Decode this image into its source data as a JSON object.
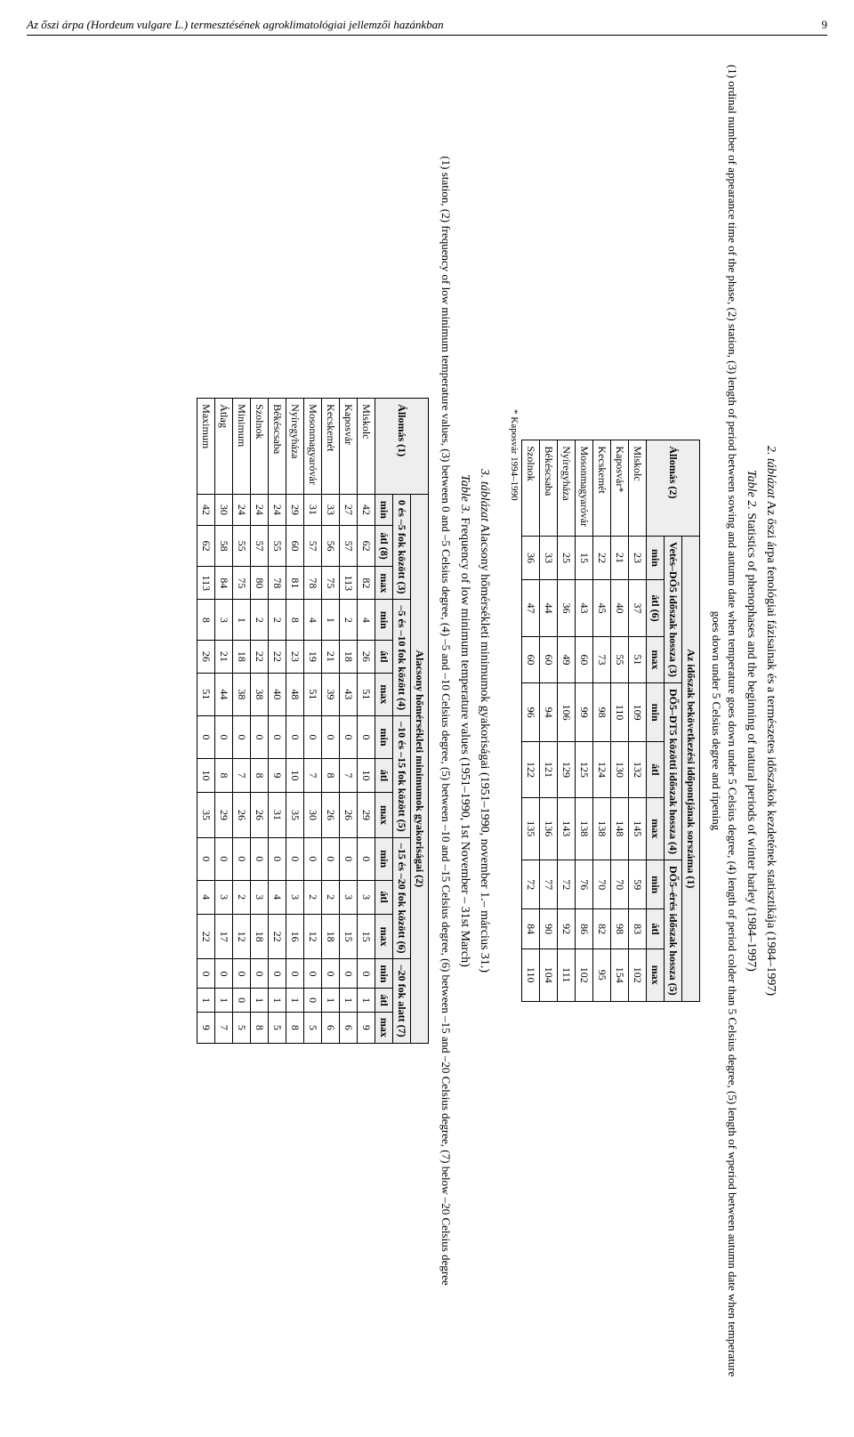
{
  "header": {
    "title": "Az őszi árpa (Hordeum vulgare L.) termesztésének agroklimatológiai jellemzői hazánkban",
    "pagenum": "9"
  },
  "table2": {
    "caption_hu_lead": "2. táblázat",
    "caption_hu_rest": " Az őszi árpa fenológiai fázisainak és a természetes időszakok kezdetének statisztikája (1984–1997)",
    "caption_en_lead": "Table 2.",
    "caption_en_rest": " Statistics of phenophases and the beginning of natural periods of winter barley (1984–1997)",
    "legend": "(1) ordinal number of appearance time of the phase, (2) station, (3) length of period between sowing and autumn date when temperature goes down under 5 Celsius degree, (4) length of period colder than 5 Celsius degree, (5) length of wperiod between autumn date when temperature goes down under 5 Celsius degree and ripening",
    "super_header": "Az időszak bekövetkezési időpontjának sorszáma (1)",
    "col_station": "Állomás (2)",
    "group_a": "Vetés–DŐ5 időszak hossza (3)",
    "group_b": "DŐ5–DT5 közötti időszak hossza (4)",
    "group_c": "DŐ5–érés időszak hossza (5)",
    "sub_min": "min",
    "sub_atl6": "átl (6)",
    "sub_max": "max",
    "sub_atl": "átl",
    "rows": [
      {
        "station": "Miskolc",
        "a": [
          "23",
          "37",
          "51"
        ],
        "b": [
          "109",
          "132",
          "145"
        ],
        "c": [
          "59",
          "83",
          "102"
        ]
      },
      {
        "station": "Kaposvár*",
        "a": [
          "21",
          "40",
          "55"
        ],
        "b": [
          "110",
          "130",
          "148"
        ],
        "c": [
          "70",
          "98",
          "154"
        ]
      },
      {
        "station": "Kecskemét",
        "a": [
          "22",
          "45",
          "73"
        ],
        "b": [
          "98",
          "124",
          "138"
        ],
        "c": [
          "70",
          "82",
          "95"
        ]
      },
      {
        "station": "Mosonmagyaróvár",
        "a": [
          "15",
          "43",
          "60"
        ],
        "b": [
          "99",
          "125",
          "138"
        ],
        "c": [
          "76",
          "86",
          "102"
        ]
      },
      {
        "station": "Nyíregyháza",
        "a": [
          "25",
          "36",
          "49"
        ],
        "b": [
          "106",
          "129",
          "143"
        ],
        "c": [
          "72",
          "92",
          "111"
        ]
      },
      {
        "station": "Békéscsaba",
        "a": [
          "33",
          "44",
          "60"
        ],
        "b": [
          "94",
          "121",
          "136"
        ],
        "c": [
          "77",
          "90",
          "104"
        ]
      },
      {
        "station": "Szolnok",
        "a": [
          "36",
          "47",
          "60"
        ],
        "b": [
          "96",
          "122",
          "135"
        ],
        "c": [
          "72",
          "84",
          "110"
        ]
      }
    ],
    "footnote": "* Kaposvár 1994–1990"
  },
  "table3": {
    "caption_hu_lead": "3. táblázat",
    "caption_hu_rest": " Alacsony hőmérsékleti minimumok gyakoriságai (1951–1990, november 1.– március 31.)",
    "caption_en_lead": "Table 3.",
    "caption_en_rest": " Frequency of low minimum temperature values (1951–1990, 1st November – 31st March)",
    "legend": "(1) station, (2) frequency of low minimum temperature values, (3) between 0 and –5 Celsius degree, (4) –5 and –10 Celsius degree, (5) between –10 and –15 Celsius degree, (6) between –15 and –20 Celsius degree, (7) below –20 Celsius degree",
    "super_header": "Alacsony hőmérsékleti minimumok gyakoriságai (2)",
    "col_station": "Állomás (1)",
    "group_a": "0 és –5 fok között (3)",
    "group_b": "–5 és –10 fok között (4)",
    "group_c": "–10 és –15 fok között (5)",
    "group_d": "–15 és –20 fok között (6)",
    "group_e": "–20 fok alatt (7)",
    "sub_min": "min",
    "sub_atl8": "átl (8)",
    "sub_max": "max",
    "sub_atl": "átl",
    "rows": [
      {
        "station": "Miskolc",
        "a": [
          "42",
          "62",
          "82"
        ],
        "b": [
          "4",
          "26",
          "51"
        ],
        "c": [
          "0",
          "10",
          "29"
        ],
        "d": [
          "0",
          "3",
          "15"
        ],
        "e": [
          "0",
          "1",
          "9"
        ]
      },
      {
        "station": "Kaposvár",
        "a": [
          "27",
          "57",
          "113"
        ],
        "b": [
          "2",
          "18",
          "43"
        ],
        "c": [
          "0",
          "7",
          "26"
        ],
        "d": [
          "0",
          "3",
          "15"
        ],
        "e": [
          "0",
          "1",
          "6"
        ]
      },
      {
        "station": "Kecskemét",
        "a": [
          "33",
          "56",
          "75"
        ],
        "b": [
          "1",
          "21",
          "39"
        ],
        "c": [
          "0",
          "8",
          "26"
        ],
        "d": [
          "0",
          "2",
          "18"
        ],
        "e": [
          "0",
          "1",
          "6"
        ]
      },
      {
        "station": "Mosonmagyaróvár",
        "a": [
          "31",
          "57",
          "78"
        ],
        "b": [
          "4",
          "19",
          "51"
        ],
        "c": [
          "0",
          "7",
          "30"
        ],
        "d": [
          "0",
          "2",
          "12"
        ],
        "e": [
          "0",
          "0",
          "5"
        ]
      },
      {
        "station": "Nyíregyháza",
        "a": [
          "29",
          "60",
          "81"
        ],
        "b": [
          "8",
          "23",
          "48"
        ],
        "c": [
          "0",
          "10",
          "35"
        ],
        "d": [
          "0",
          "3",
          "16"
        ],
        "e": [
          "0",
          "1",
          "8"
        ]
      },
      {
        "station": "Békéscsaba",
        "a": [
          "24",
          "55",
          "78"
        ],
        "b": [
          "2",
          "22",
          "40"
        ],
        "c": [
          "0",
          "9",
          "31"
        ],
        "d": [
          "0",
          "4",
          "22"
        ],
        "e": [
          "0",
          "1",
          "5"
        ]
      },
      {
        "station": "Szolnok",
        "a": [
          "24",
          "57",
          "80"
        ],
        "b": [
          "2",
          "22",
          "38"
        ],
        "c": [
          "0",
          "8",
          "26"
        ],
        "d": [
          "0",
          "3",
          "18"
        ],
        "e": [
          "0",
          "1",
          "8"
        ]
      },
      {
        "station": "Minimum",
        "a": [
          "24",
          "55",
          "75"
        ],
        "b": [
          "1",
          "18",
          "38"
        ],
        "c": [
          "0",
          "7",
          "26"
        ],
        "d": [
          "0",
          "2",
          "12"
        ],
        "e": [
          "0",
          "0",
          "5"
        ]
      },
      {
        "station": "Átlag",
        "a": [
          "30",
          "58",
          "84"
        ],
        "b": [
          "3",
          "21",
          "44"
        ],
        "c": [
          "0",
          "8",
          "29"
        ],
        "d": [
          "0",
          "3",
          "17"
        ],
        "e": [
          "0",
          "1",
          "7"
        ]
      },
      {
        "station": "Maximum",
        "a": [
          "42",
          "62",
          "113"
        ],
        "b": [
          "8",
          "26",
          "51"
        ],
        "c": [
          "0",
          "10",
          "35"
        ],
        "d": [
          "0",
          "4",
          "22"
        ],
        "e": [
          "0",
          "1",
          "9"
        ]
      }
    ]
  }
}
